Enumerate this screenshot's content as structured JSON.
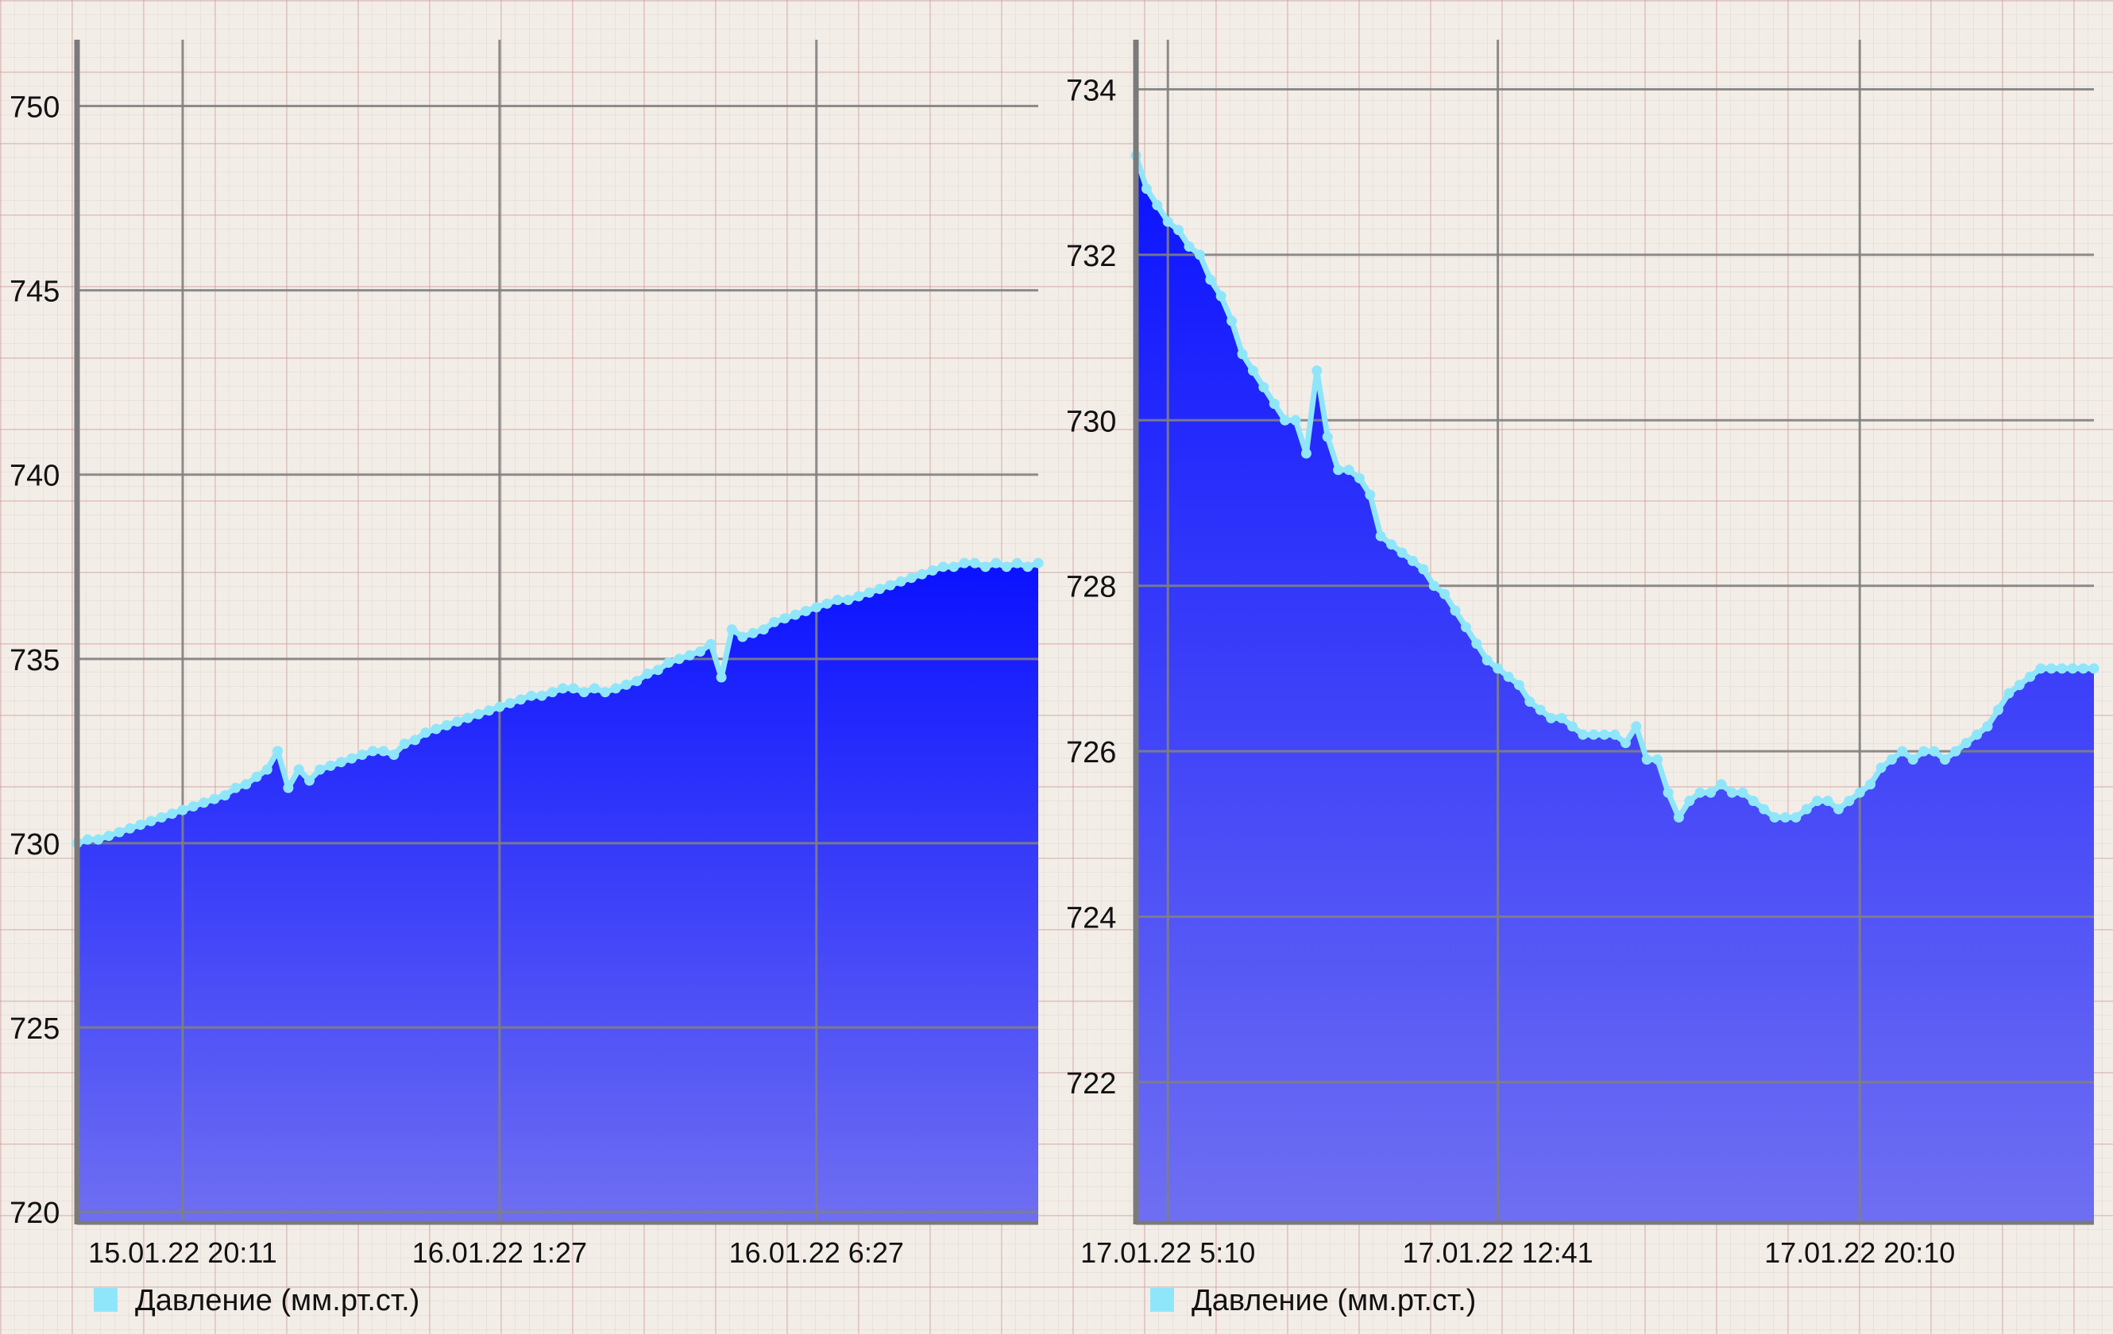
{
  "colors": {
    "line": "#8fe6fb",
    "fill_top": "#0a12ff",
    "fill_bottom": "#6f6ff2",
    "grid": "#808080",
    "axis": "#7a7a7a",
    "text": "#111111"
  },
  "chart_data": [
    {
      "type": "area",
      "title": "",
      "xlabel": "",
      "ylabel": "",
      "legend": {
        "label": "Давление (мм.рт.ст.)",
        "position": "bottom-left"
      },
      "grid": true,
      "ylim": [
        719.7,
        751.8
      ],
      "yticks": [
        720,
        725,
        730,
        735,
        740,
        745,
        750
      ],
      "xlim": [
        0,
        91
      ],
      "xticks": [
        {
          "at": 10,
          "label": "15.01.22 20:11"
        },
        {
          "at": 40,
          "label": "16.01.22 1:27"
        },
        {
          "at": 70,
          "label": "16.01.22 6:27"
        }
      ],
      "series": [
        {
          "name": "Давление (мм.рт.ст.)",
          "values": [
            730.0,
            730.1,
            730.1,
            730.2,
            730.3,
            730.4,
            730.5,
            730.6,
            730.7,
            730.8,
            730.9,
            731.0,
            731.1,
            731.2,
            731.3,
            731.5,
            731.6,
            731.8,
            732.0,
            732.5,
            731.5,
            732.0,
            731.7,
            732.0,
            732.1,
            732.2,
            732.3,
            732.4,
            732.5,
            732.5,
            732.4,
            732.7,
            732.8,
            733.0,
            733.1,
            733.2,
            733.3,
            733.4,
            733.5,
            733.6,
            733.7,
            733.8,
            733.9,
            734.0,
            734.0,
            734.1,
            734.2,
            734.2,
            734.1,
            734.2,
            734.1,
            734.2,
            734.3,
            734.4,
            734.6,
            734.7,
            734.9,
            735.0,
            735.1,
            735.2,
            735.4,
            734.5,
            735.8,
            735.6,
            735.7,
            735.8,
            736.0,
            736.1,
            736.2,
            736.3,
            736.4,
            736.5,
            736.6,
            736.6,
            736.7,
            736.8,
            736.9,
            737.0,
            737.1,
            737.2,
            737.3,
            737.4,
            737.5,
            737.5,
            737.6,
            737.6,
            737.5,
            737.6,
            737.5,
            737.6,
            737.5,
            737.6
          ]
        }
      ]
    },
    {
      "type": "area",
      "title": "",
      "xlabel": "",
      "ylabel": "",
      "legend": {
        "label": "Давление (мм.рт.ст.)",
        "position": "bottom-left"
      },
      "grid": true,
      "ylim": [
        720.3,
        734.6
      ],
      "yticks": [
        722,
        724,
        726,
        728,
        730,
        732,
        734
      ],
      "xlim": [
        0,
        90
      ],
      "xticks": [
        {
          "at": 3,
          "label": "17.01.22 5:10"
        },
        {
          "at": 34,
          "label": "17.01.22 12:41"
        },
        {
          "at": 68,
          "label": "17.01.22 20:10"
        }
      ],
      "series": [
        {
          "name": "Давление (мм.рт.ст.)",
          "values": [
            733.2,
            732.8,
            732.6,
            732.4,
            732.3,
            732.1,
            732.0,
            731.7,
            731.5,
            731.2,
            730.8,
            730.6,
            730.4,
            730.2,
            730.0,
            730.0,
            729.6,
            730.6,
            729.8,
            729.4,
            729.4,
            729.3,
            729.1,
            728.6,
            728.5,
            728.4,
            728.3,
            728.2,
            728.0,
            727.9,
            727.7,
            727.5,
            727.3,
            727.1,
            727.0,
            726.9,
            726.8,
            726.6,
            726.5,
            726.4,
            726.4,
            726.3,
            726.2,
            726.2,
            726.2,
            726.2,
            726.1,
            726.3,
            725.9,
            725.9,
            725.5,
            725.2,
            725.4,
            725.5,
            725.5,
            725.6,
            725.5,
            725.5,
            725.4,
            725.3,
            725.2,
            725.2,
            725.2,
            725.3,
            725.4,
            725.4,
            725.3,
            725.4,
            725.5,
            725.6,
            725.8,
            725.9,
            726.0,
            725.9,
            726.0,
            726.0,
            725.9,
            726.0,
            726.1,
            726.2,
            726.3,
            726.5,
            726.7,
            726.8,
            726.9,
            727.0,
            727.0,
            727.0,
            727.0,
            727.0,
            727.0
          ]
        }
      ]
    }
  ]
}
